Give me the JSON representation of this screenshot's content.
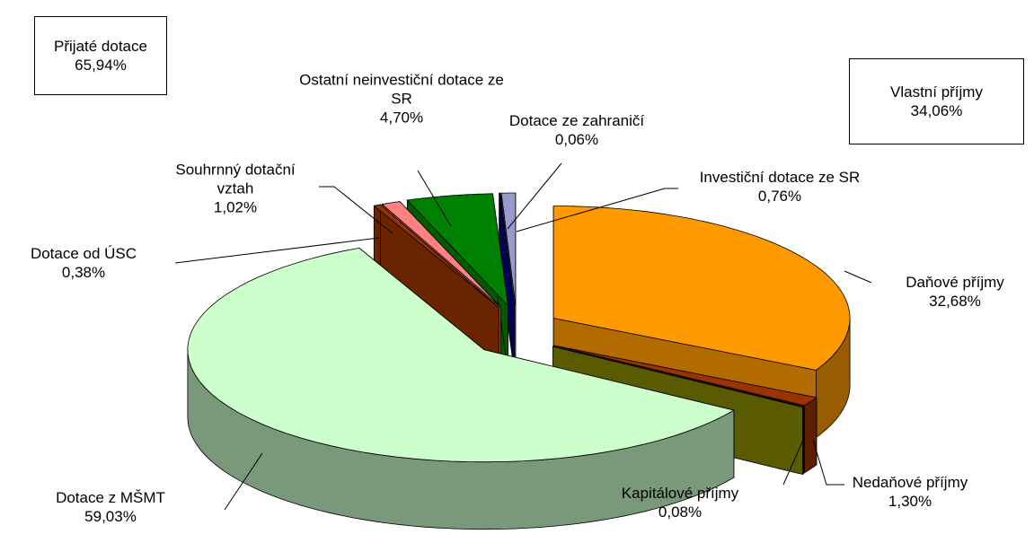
{
  "chart_data": {
    "type": "pie3d",
    "categories": [
      "Daňové příjmy",
      "Nedaňové příjmy",
      "Kapitálové příjmy",
      "Dotace z MŠMT",
      "Dotace od ÚSC",
      "Souhrnný dotační vztah",
      "Ostatní neinvestiční dotace ze SR",
      "Dotace ze zahraničí",
      "Investiční dotace ze SR"
    ],
    "values": [
      32.68,
      1.3,
      0.08,
      59.03,
      0.38,
      1.02,
      4.7,
      0.06,
      0.76
    ],
    "value_labels": [
      "32,68%",
      "1,30%",
      "0,08%",
      "59,03%",
      "0,38%",
      "1,02%",
      "4,70%",
      "0,06%",
      "0,76%"
    ],
    "colors": [
      "#ff9900",
      "#993300",
      "#808000",
      "#ccffcc",
      "#993300",
      "#ff8080",
      "#008000",
      "#000080",
      "#9999cc"
    ],
    "annotations": [
      {
        "text": "Přijaté dotace",
        "value_label": "65,94%"
      },
      {
        "text": "Vlastní příjmy",
        "value_label": "34,06%"
      }
    ]
  }
}
